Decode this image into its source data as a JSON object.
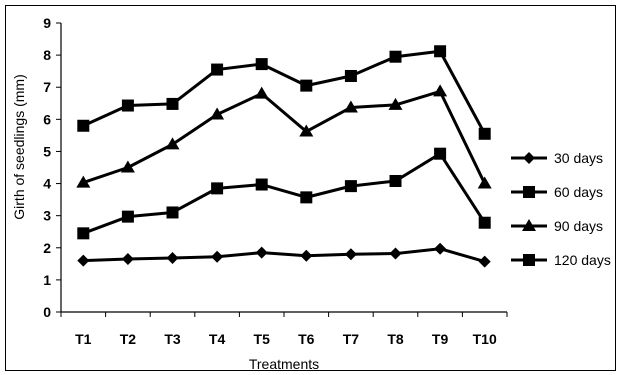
{
  "chart_data": {
    "type": "line",
    "title": "",
    "xlabel": "Treatments",
    "ylabel": "Girth of seedlings (mm)",
    "categories": [
      "T1",
      "T2",
      "T3",
      "T4",
      "T5",
      "T6",
      "T7",
      "T8",
      "T9",
      "T10"
    ],
    "ylim": [
      0,
      9
    ],
    "yticks": [
      "0",
      "1",
      "2",
      "3",
      "4",
      "5",
      "6",
      "7",
      "8",
      "9"
    ],
    "grid": false,
    "legend_position": "right",
    "series": [
      {
        "name": "30 days",
        "marker": "diamond",
        "color": "#000000",
        "values": [
          1.6,
          1.65,
          1.68,
          1.72,
          1.85,
          1.75,
          1.8,
          1.82,
          1.97,
          1.57
        ]
      },
      {
        "name": "60 days",
        "marker": "square",
        "color": "#000000",
        "values": [
          2.45,
          2.97,
          3.1,
          3.85,
          3.97,
          3.57,
          3.92,
          4.08,
          4.93,
          2.78
        ]
      },
      {
        "name": "90 days",
        "marker": "triangle",
        "color": "#000000",
        "values": [
          4.03,
          4.5,
          5.22,
          6.15,
          6.8,
          5.62,
          6.37,
          6.45,
          6.87,
          4.0
        ]
      },
      {
        "name": "120 days",
        "marker": "square",
        "color": "#000000",
        "values": [
          5.8,
          6.43,
          6.48,
          7.55,
          7.72,
          7.05,
          7.35,
          7.95,
          8.12,
          5.55
        ]
      }
    ]
  }
}
